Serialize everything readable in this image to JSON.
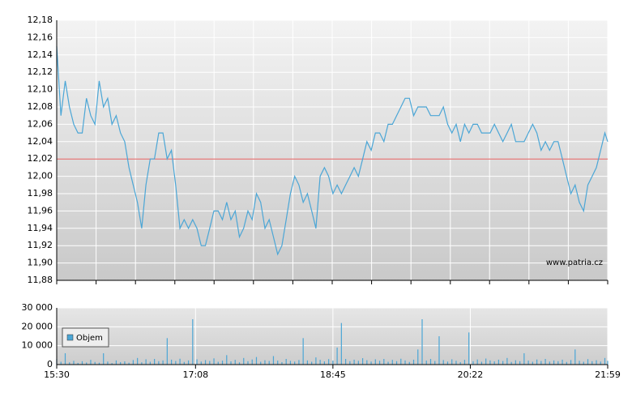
{
  "chart_data": [
    {
      "type": "line",
      "annotation": "www.patria.cz",
      "x": [
        0,
        3,
        6,
        9,
        12,
        15,
        18,
        21,
        24,
        27,
        30,
        33,
        36,
        39,
        42,
        45,
        48,
        51,
        54,
        57,
        60,
        63,
        66,
        69,
        72,
        75,
        78,
        81,
        84,
        87,
        90,
        93,
        96,
        99,
        102,
        105,
        108,
        111,
        114,
        117,
        120,
        123,
        126,
        129,
        132,
        135,
        138,
        141,
        144,
        147,
        150,
        153,
        156,
        159,
        162,
        165,
        168,
        171,
        174,
        177,
        180,
        183,
        186,
        189,
        192,
        195,
        198,
        201,
        204,
        207,
        210,
        213,
        216,
        219,
        222,
        225,
        228,
        231,
        234,
        237,
        240,
        243,
        246,
        249,
        252,
        255,
        258,
        261,
        264,
        267,
        270,
        273,
        276,
        279,
        282,
        285,
        288,
        291,
        294,
        297,
        300,
        303,
        306,
        309,
        312,
        315,
        318,
        321,
        324,
        327,
        330,
        333,
        336,
        339,
        342,
        345,
        348,
        351,
        354,
        357,
        360,
        363,
        366,
        369,
        372,
        375,
        378,
        381,
        384,
        387,
        389
      ],
      "series": [
        {
          "color": "#4ba6d6",
          "values": [
            12.15,
            12.07,
            12.11,
            12.08,
            12.06,
            12.05,
            12.05,
            12.09,
            12.07,
            12.06,
            12.11,
            12.08,
            12.09,
            12.06,
            12.07,
            12.05,
            12.04,
            12.01,
            11.99,
            11.97,
            11.94,
            11.99,
            12.02,
            12.02,
            12.05,
            12.05,
            12.02,
            12.03,
            11.99,
            11.94,
            11.95,
            11.94,
            11.95,
            11.94,
            11.92,
            11.92,
            11.94,
            11.96,
            11.96,
            11.95,
            11.97,
            11.95,
            11.96,
            11.93,
            11.94,
            11.96,
            11.95,
            11.98,
            11.97,
            11.94,
            11.95,
            11.93,
            11.91,
            11.92,
            11.95,
            11.98,
            12.0,
            11.99,
            11.97,
            11.98,
            11.96,
            11.94,
            12.0,
            12.01,
            12.0,
            11.98,
            11.99,
            11.98,
            11.99,
            12.0,
            12.01,
            12.0,
            12.02,
            12.04,
            12.03,
            12.05,
            12.05,
            12.04,
            12.06,
            12.06,
            12.07,
            12.08,
            12.09,
            12.09,
            12.07,
            12.08,
            12.08,
            12.08,
            12.07,
            12.07,
            12.07,
            12.08,
            12.06,
            12.05,
            12.06,
            12.04,
            12.06,
            12.05,
            12.06,
            12.06,
            12.05,
            12.05,
            12.05,
            12.06,
            12.05,
            12.04,
            12.05,
            12.06,
            12.04,
            12.04,
            12.04,
            12.05,
            12.06,
            12.05,
            12.03,
            12.04,
            12.03,
            12.04,
            12.04,
            12.02,
            12.0,
            11.98,
            11.99,
            11.97,
            11.96,
            11.99,
            12.0,
            12.01,
            12.03,
            12.05,
            12.04
          ]
        }
      ],
      "reference_line": 12.02,
      "reference_color": "#e05a5a",
      "xlim": [
        0,
        389
      ],
      "xgrid": [
        0,
        27.8,
        55.6,
        83.4,
        111.1,
        138.9,
        166.7,
        194.5,
        222.3,
        250.1,
        277.9,
        305.6,
        333.4,
        361.2,
        389
      ],
      "ylim": [
        11.88,
        12.18
      ],
      "yticks": [
        {
          "value": 11.88,
          "label": "11,88"
        },
        {
          "value": 11.9,
          "label": "11,90"
        },
        {
          "value": 11.92,
          "label": "11,92"
        },
        {
          "value": 11.94,
          "label": "11,94"
        },
        {
          "value": 11.96,
          "label": "11,96"
        },
        {
          "value": 11.98,
          "label": "11,98"
        },
        {
          "value": 12.0,
          "label": "12,00"
        },
        {
          "value": 12.02,
          "label": "12,02"
        },
        {
          "value": 12.04,
          "label": "12,04"
        },
        {
          "value": 12.06,
          "label": "12,06"
        },
        {
          "value": 12.08,
          "label": "12,08"
        },
        {
          "value": 12.1,
          "label": "12,10"
        },
        {
          "value": 12.12,
          "label": "12,12"
        },
        {
          "value": 12.14,
          "label": "12,14"
        },
        {
          "value": 12.16,
          "label": "12,16"
        },
        {
          "value": 12.18,
          "label": "12,18"
        }
      ],
      "grid": true
    },
    {
      "type": "bar",
      "x": [
        0,
        3,
        6,
        9,
        12,
        15,
        18,
        21,
        24,
        27,
        30,
        33,
        36,
        39,
        42,
        45,
        48,
        51,
        54,
        57,
        60,
        63,
        66,
        69,
        72,
        75,
        78,
        81,
        84,
        87,
        90,
        93,
        96,
        99,
        102,
        105,
        108,
        111,
        114,
        117,
        120,
        123,
        126,
        129,
        132,
        135,
        138,
        141,
        144,
        147,
        150,
        153,
        156,
        159,
        162,
        165,
        168,
        171,
        174,
        177,
        180,
        183,
        186,
        189,
        192,
        195,
        198,
        201,
        204,
        207,
        210,
        213,
        216,
        219,
        222,
        225,
        228,
        231,
        234,
        237,
        240,
        243,
        246,
        249,
        252,
        255,
        258,
        261,
        264,
        267,
        270,
        273,
        276,
        279,
        282,
        285,
        288,
        291,
        294,
        297,
        300,
        303,
        306,
        309,
        312,
        315,
        318,
        321,
        324,
        327,
        330,
        333,
        336,
        339,
        342,
        345,
        348,
        351,
        354,
        357,
        360,
        363,
        366,
        369,
        372,
        375,
        378,
        381,
        384,
        387,
        389
      ],
      "series": [
        {
          "name": "Objem",
          "color": "#4ba6d6",
          "values": [
            3000,
            1500,
            6000,
            1200,
            2000,
            900,
            1800,
            1100,
            2500,
            1400,
            1000,
            6000,
            1600,
            800,
            2200,
            1300,
            1700,
            1000,
            2400,
            3500,
            1200,
            2800,
            1500,
            3000,
            1800,
            2200,
            14000,
            2600,
            1900,
            3100,
            1400,
            2200,
            24000,
            2800,
            1600,
            2400,
            1900,
            3300,
            1500,
            2100,
            5000,
            1700,
            2500,
            1200,
            3500,
            1800,
            2700,
            4000,
            1500,
            2300,
            1900,
            4500,
            2100,
            1300,
            3000,
            2000,
            1600,
            2400,
            14000,
            2200,
            1500,
            3800,
            2500,
            1700,
            2900,
            2100,
            9000,
            22000,
            3000,
            1800,
            2600,
            2000,
            3400,
            2300,
            1600,
            2800,
            2000,
            3000,
            1500,
            2500,
            1800,
            3100,
            2200,
            1400,
            2600,
            8000,
            24000,
            2100,
            3000,
            1900,
            15000,
            2400,
            1600,
            2800,
            2000,
            1300,
            2500,
            17000,
            1800,
            2700,
            1500,
            3200,
            2200,
            1700,
            2600,
            1900,
            3500,
            1400,
            2300,
            1800,
            6000,
            2100,
            1500,
            2700,
            1900,
            3000,
            1600,
            2200,
            1800,
            2600,
            1400,
            2400,
            8000,
            2000,
            1500,
            2900,
            1800,
            2300,
            1600,
            3500,
            2000
          ]
        }
      ],
      "xlim": [
        0,
        389
      ],
      "xticks": [
        {
          "value": 0,
          "label": "15:30"
        },
        {
          "value": 98,
          "label": "17:08"
        },
        {
          "value": 195,
          "label": "18:45"
        },
        {
          "value": 292,
          "label": "20:22"
        },
        {
          "value": 389,
          "label": "21:59"
        }
      ],
      "ylim": [
        0,
        30000
      ],
      "yticks": [
        0,
        {
          "value": 10000,
          "label": "10 000"
        },
        {
          "value": 20000,
          "label": "20 000"
        },
        {
          "value": 30000,
          "label": "30 000"
        }
      ],
      "grid": true,
      "legend": "upper left"
    }
  ]
}
